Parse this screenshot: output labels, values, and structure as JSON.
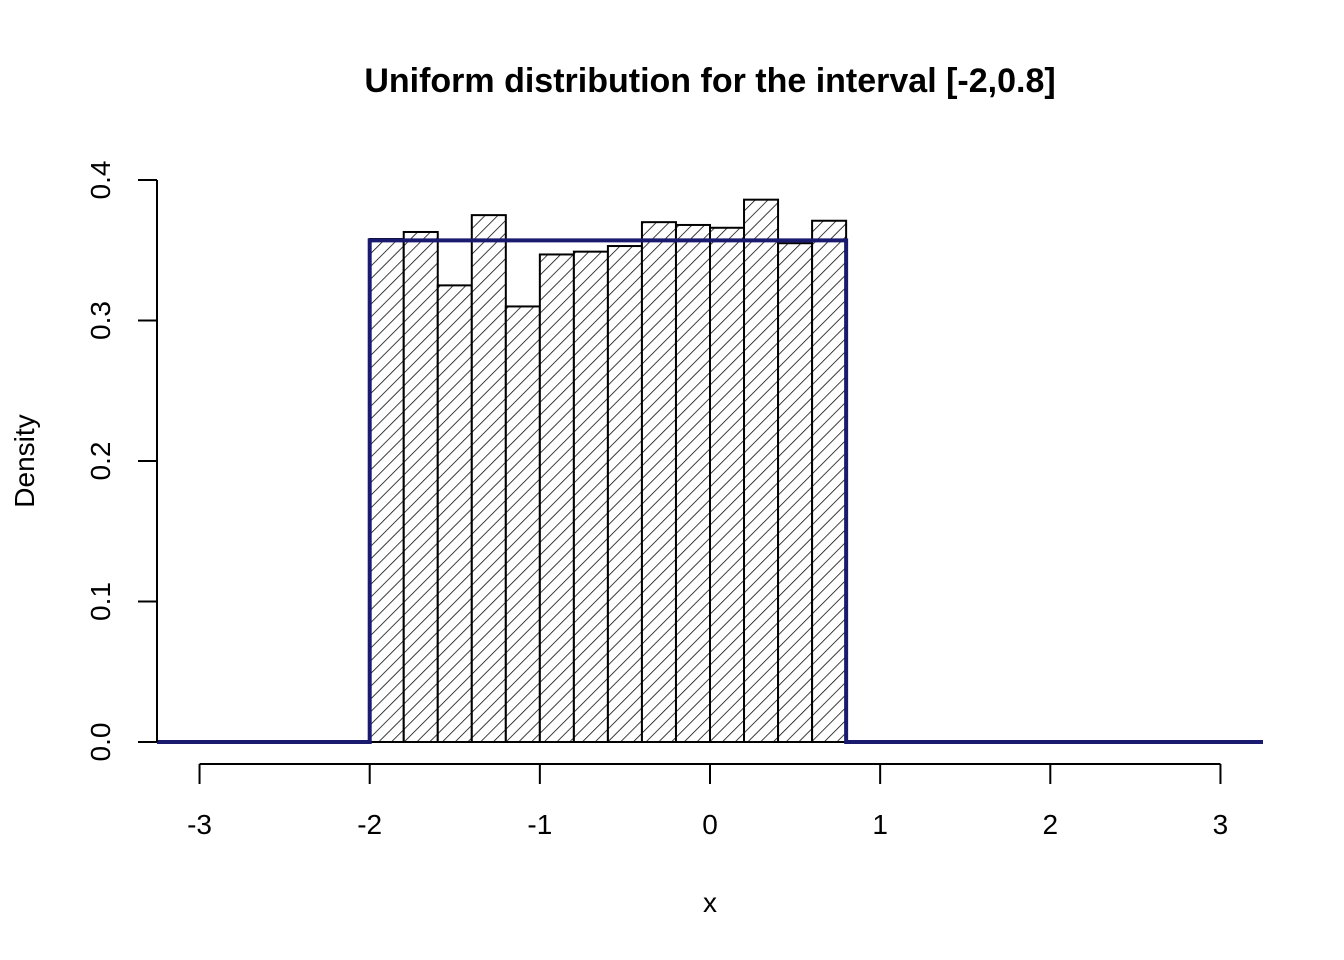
{
  "chart_data": {
    "type": "bar",
    "title": "Uniform distribution for the interval [-2,0.8]",
    "xlabel": "x",
    "ylabel": "Density",
    "xlim": [
      -3.25,
      3.25
    ],
    "ylim": [
      0,
      0.4
    ],
    "x_ticks": [
      -3,
      -2,
      -1,
      0,
      1,
      2,
      3
    ],
    "y_ticks": [
      0.0,
      0.1,
      0.2,
      0.3,
      0.4
    ],
    "x_tick_labels": [
      "-3",
      "-2",
      "-1",
      "0",
      "1",
      "2",
      "3"
    ],
    "y_tick_labels": [
      "0.0",
      "0.1",
      "0.2",
      "0.3",
      "0.4"
    ],
    "histogram": {
      "bin_edges": [
        -2.0,
        -1.8,
        -1.6,
        -1.4,
        -1.2,
        -1.0,
        -0.8,
        -0.6,
        -0.4,
        -0.2,
        0.0,
        0.2,
        0.4,
        0.6,
        0.8
      ],
      "densities": [
        0.358,
        0.363,
        0.325,
        0.375,
        0.31,
        0.347,
        0.349,
        0.353,
        0.37,
        0.368,
        0.366,
        0.386,
        0.355,
        0.371
      ],
      "fill_pattern": "diagonal-hatch"
    },
    "density_curve": {
      "type": "step",
      "x": [
        -3.25,
        -2.0,
        -2.0,
        0.8,
        0.8,
        3.25
      ],
      "y": [
        0,
        0,
        0.357,
        0.357,
        0,
        0
      ],
      "color": "#1a1a6e"
    },
    "grid": false
  }
}
